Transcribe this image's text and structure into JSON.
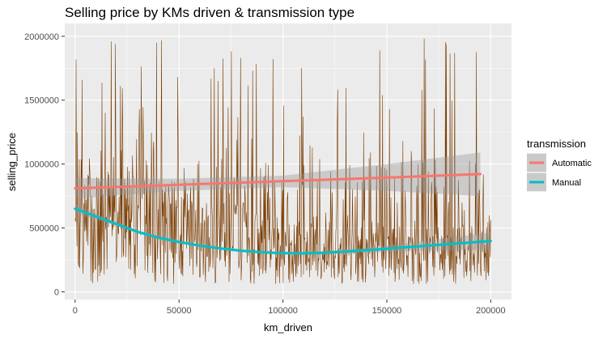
{
  "chart_data": {
    "type": "line",
    "title": "Selling price by KMs driven & transmission type",
    "xlabel": "km_driven",
    "ylabel": "selling_price",
    "xlim": [
      -5000,
      210000
    ],
    "ylim": [
      -60000,
      2100000
    ],
    "x_ticks": [
      0,
      50000,
      100000,
      150000,
      200000
    ],
    "y_ticks": [
      0,
      500000,
      1000000,
      1500000,
      2000000
    ],
    "grid": true,
    "panel_background": "#ebebeb",
    "raw_line_color": "#7a3b00",
    "legend": {
      "title": "transmission",
      "placement": "right",
      "entries": [
        {
          "label": "Automatic",
          "color": "#f8766d"
        },
        {
          "label": "Manual",
          "color": "#00bfc4"
        }
      ]
    },
    "series": [
      {
        "name": "Automatic",
        "color": "#f8766d",
        "kind": "linear-smooth",
        "x": [
          0,
          50000,
          100000,
          150000,
          195000
        ],
        "y": [
          810000,
          838000,
          866000,
          894000,
          922000
        ],
        "ci_lower": [
          730000,
          790000,
          820000,
          790000,
          750000
        ],
        "ci_upper": [
          890000,
          885000,
          910000,
          1000000,
          1090000
        ]
      },
      {
        "name": "Manual",
        "color": "#00bfc4",
        "kind": "loess-smooth",
        "x": [
          0,
          10000,
          20000,
          30000,
          40000,
          50000,
          60000,
          70000,
          80000,
          90000,
          100000,
          110000,
          120000,
          130000,
          140000,
          150000,
          160000,
          170000,
          180000,
          190000,
          200000
        ],
        "y": [
          650000,
          590000,
          530000,
          470000,
          425000,
          390000,
          362000,
          340000,
          322000,
          310000,
          303000,
          302000,
          306000,
          315000,
          326000,
          338000,
          350000,
          362000,
          374000,
          386000,
          398000
        ],
        "ci_lower": [
          610000,
          570000,
          515000,
          458000,
          414000,
          380000,
          352000,
          330000,
          312000,
          300000,
          292000,
          290000,
          292000,
          298000,
          305000,
          312000,
          318000,
          322000,
          325000,
          328000,
          330000
        ],
        "ci_upper": [
          690000,
          610000,
          545000,
          482000,
          436000,
          400000,
          372000,
          350000,
          332000,
          320000,
          314000,
          314000,
          320000,
          332000,
          347000,
          364000,
          382000,
          402000,
          423000,
          444000,
          466000
        ]
      }
    ],
    "raw_sample": {
      "name": "observations",
      "x_start": 0,
      "x_end": 200000,
      "count": 900,
      "noise_seed": 7
    }
  }
}
